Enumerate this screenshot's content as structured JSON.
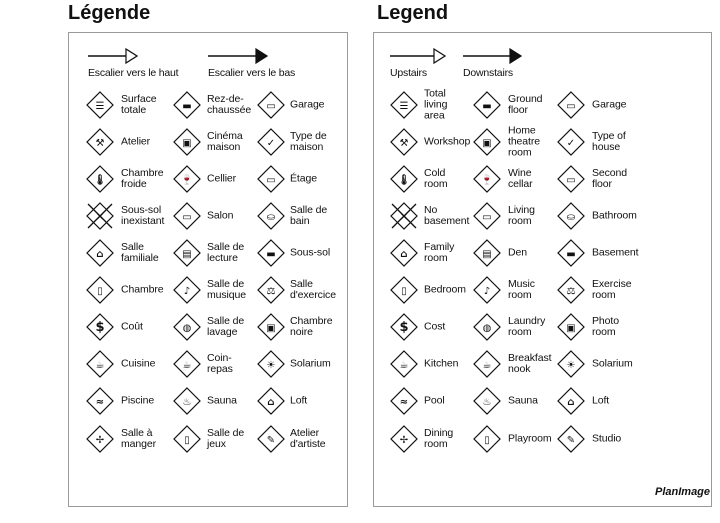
{
  "legends": [
    {
      "title": "Légende",
      "stairs_up": "Escalier vers le haut",
      "stairs_down": "Escalier vers le bas",
      "items": [
        [
          "Surface\ntotale",
          "total-area"
        ],
        [
          "Rez-de-\nchaussée",
          "ground-floor"
        ],
        [
          "Garage",
          "garage"
        ],
        [
          "Atelier",
          "workshop"
        ],
        [
          "Cinéma\nmaison",
          "home-theatre"
        ],
        [
          "Type de\nmaison",
          "house-type"
        ],
        [
          "Chambre\nfroide",
          "cold-room"
        ],
        [
          "Cellier",
          "wine-cellar"
        ],
        [
          "Étage",
          "second-floor"
        ],
        [
          "Sous-sol\ninexistant",
          "no-basement"
        ],
        [
          "Salon",
          "living-room"
        ],
        [
          "Salle de\nbain",
          "bathroom"
        ],
        [
          "Salle\nfamiliale",
          "family-room"
        ],
        [
          "Salle de\nlecture",
          "den"
        ],
        [
          "Sous-sol",
          "basement"
        ],
        [
          "Chambre",
          "bedroom"
        ],
        [
          "Salle de\nmusique",
          "music-room"
        ],
        [
          "Salle\nd'exercice",
          "exercise-room"
        ],
        [
          "Coût",
          "cost"
        ],
        [
          "Salle de\nlavage",
          "laundry-room"
        ],
        [
          "Chambre\nnoire",
          "photo-room"
        ],
        [
          "Cuisine",
          "kitchen"
        ],
        [
          "Coin-\nrepas",
          "breakfast-nook"
        ],
        [
          "Solarium",
          "solarium"
        ],
        [
          "Piscine",
          "pool"
        ],
        [
          "Sauna",
          "sauna"
        ],
        [
          "Loft",
          "loft"
        ],
        [
          "Salle à\nmanger",
          "dining-room"
        ],
        [
          "Salle de\njeux",
          "playroom"
        ],
        [
          "Atelier\nd'artiste",
          "studio"
        ]
      ]
    },
    {
      "title": "Legend",
      "stairs_up": "Upstairs",
      "stairs_down": "Downstairs",
      "items": [
        [
          "Total\nliving\narea",
          "total-area"
        ],
        [
          "Ground\nfloor",
          "ground-floor"
        ],
        [
          "Garage",
          "garage"
        ],
        [
          "Workshop",
          "workshop"
        ],
        [
          "Home\ntheatre\nroom",
          "home-theatre"
        ],
        [
          "Type of\nhouse",
          "house-type"
        ],
        [
          "Cold\nroom",
          "cold-room"
        ],
        [
          "Wine\ncellar",
          "wine-cellar"
        ],
        [
          "Second\nfloor",
          "second-floor"
        ],
        [
          "No\nbasement",
          "no-basement"
        ],
        [
          "Living\nroom",
          "living-room"
        ],
        [
          "Bathroom",
          "bathroom"
        ],
        [
          "Family\nroom",
          "family-room"
        ],
        [
          "Den",
          "den"
        ],
        [
          "Basement",
          "basement"
        ],
        [
          "Bedroom",
          "bedroom"
        ],
        [
          "Music\nroom",
          "music-room"
        ],
        [
          "Exercise\nroom",
          "exercise-room"
        ],
        [
          "Cost",
          "cost"
        ],
        [
          "Laundry\nroom",
          "laundry-room"
        ],
        [
          "Photo\nroom",
          "photo-room"
        ],
        [
          "Kitchen",
          "kitchen"
        ],
        [
          "Breakfast\nnook",
          "breakfast-nook"
        ],
        [
          "Solarium",
          "solarium"
        ],
        [
          "Pool",
          "pool"
        ],
        [
          "Sauna",
          "sauna"
        ],
        [
          "Loft",
          "loft"
        ],
        [
          "Dining\nroom",
          "dining-room"
        ],
        [
          "Playroom",
          "playroom"
        ],
        [
          "Studio",
          "studio"
        ]
      ]
    }
  ],
  "logo": "PlanImage"
}
